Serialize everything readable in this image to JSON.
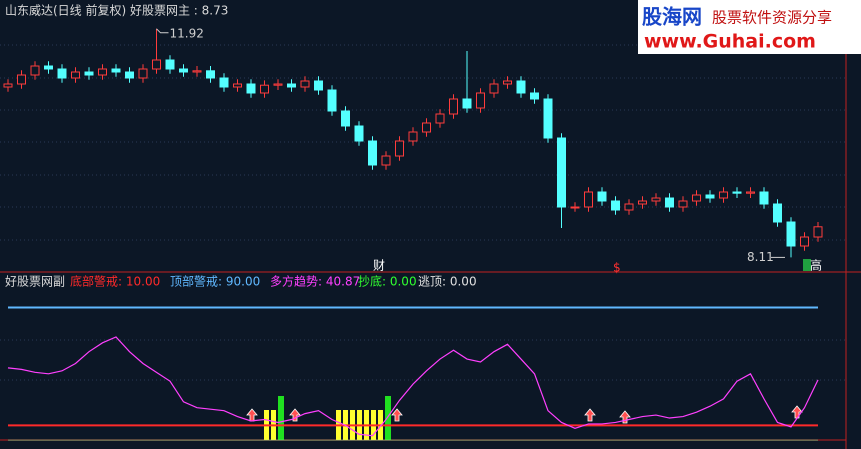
{
  "watermark": {
    "brand": "股海网",
    "slogan": "股票软件资源分享",
    "url": "www.Guhai.com"
  },
  "chart_data": [
    {
      "type": "candlestick",
      "title": "山东威达(日线 前复权) 好股票网主 : 8.73",
      "up_color": "#ff3c3c",
      "down_color": "#54ffff",
      "ylim": [
        7.9,
        12.4
      ],
      "annotations": [
        "财",
        "$",
        "高"
      ],
      "open": [
        10.95,
        11.0,
        11.15,
        11.3,
        11.25,
        11.1,
        11.2,
        11.15,
        11.25,
        11.2,
        11.1,
        11.25,
        11.4,
        11.25,
        11.2,
        11.22,
        11.1,
        10.95,
        11.0,
        10.85,
        10.98,
        11.0,
        10.95,
        11.05,
        10.9,
        10.55,
        10.3,
        10.05,
        9.65,
        9.8,
        10.05,
        10.2,
        10.35,
        10.5,
        10.75,
        10.6,
        10.85,
        11.0,
        11.05,
        10.85,
        10.75,
        10.1,
        8.95,
        8.95,
        9.2,
        9.05,
        8.9,
        9.0,
        9.05,
        9.1,
        8.95,
        9.05,
        9.15,
        9.1,
        9.2,
        9.18,
        9.2,
        9.0,
        8.7,
        8.3,
        8.45
      ],
      "high": [
        11.08,
        11.23,
        11.38,
        11.38,
        11.33,
        11.28,
        11.28,
        11.33,
        11.33,
        11.28,
        11.33,
        11.92,
        11.48,
        11.33,
        11.3,
        11.3,
        11.18,
        11.08,
        11.08,
        11.06,
        11.08,
        11.08,
        11.13,
        11.13,
        10.98,
        10.63,
        10.38,
        10.13,
        9.88,
        10.13,
        10.28,
        10.43,
        10.58,
        10.83,
        11.55,
        10.93,
        11.08,
        11.13,
        11.13,
        10.93,
        10.83,
        10.18,
        9.03,
        9.28,
        9.28,
        9.13,
        9.08,
        9.13,
        9.18,
        9.18,
        9.13,
        9.23,
        9.23,
        9.28,
        9.28,
        9.28,
        9.28,
        9.08,
        8.78,
        8.53,
        8.7
      ],
      "low": [
        10.87,
        10.92,
        11.07,
        11.17,
        11.02,
        11.02,
        11.07,
        11.07,
        11.12,
        11.02,
        11.02,
        11.17,
        11.17,
        11.12,
        11.12,
        11.02,
        10.87,
        10.87,
        10.77,
        10.77,
        10.9,
        10.87,
        10.87,
        10.82,
        10.47,
        10.22,
        9.97,
        9.57,
        9.57,
        9.72,
        9.97,
        10.12,
        10.27,
        10.42,
        10.52,
        10.52,
        10.77,
        10.92,
        10.77,
        10.67,
        10.02,
        8.6,
        8.87,
        8.87,
        8.97,
        8.82,
        8.82,
        8.92,
        8.97,
        8.87,
        8.87,
        8.97,
        9.02,
        9.02,
        9.1,
        9.1,
        8.92,
        8.62,
        8.11,
        8.22,
        8.37
      ],
      "close": [
        11.0,
        11.15,
        11.3,
        11.25,
        11.1,
        11.2,
        11.15,
        11.25,
        11.2,
        11.1,
        11.25,
        11.4,
        11.25,
        11.2,
        11.22,
        11.1,
        10.95,
        11.0,
        10.85,
        10.98,
        11.0,
        10.95,
        11.05,
        10.9,
        10.55,
        10.3,
        10.05,
        9.65,
        9.8,
        10.05,
        10.2,
        10.35,
        10.5,
        10.75,
        10.6,
        10.85,
        11.0,
        11.05,
        10.85,
        10.75,
        10.1,
        8.95,
        8.95,
        9.2,
        9.05,
        8.9,
        9.0,
        9.05,
        9.1,
        8.95,
        9.05,
        9.15,
        9.1,
        9.2,
        9.18,
        9.2,
        9.0,
        8.7,
        8.3,
        8.45,
        8.62
      ]
    },
    {
      "type": "line",
      "title": "好股票网副",
      "ylim": [
        -6,
        112
      ],
      "series": [
        {
          "label": "底部警戒: 10.00",
          "value": 10,
          "color": "#ff2a2a"
        },
        {
          "label": "顶部警戒: 90.00",
          "value": 90,
          "color": "#60b8ff"
        },
        {
          "label": "多方趋势: 40.87",
          "color": "#ff40ff",
          "values": [
            49,
            48,
            46,
            45,
            47,
            52,
            60,
            66,
            70,
            60,
            52,
            46,
            40,
            26,
            22,
            21,
            20,
            16,
            13,
            14,
            12,
            14,
            18,
            20,
            14,
            10,
            4,
            3,
            14,
            27,
            38,
            47,
            55,
            61,
            55,
            53,
            60,
            65,
            55,
            45,
            20,
            12,
            8,
            11,
            11,
            12,
            14,
            16,
            17,
            15,
            16,
            19,
            23,
            28,
            40,
            45,
            28,
            12,
            9,
            22,
            40.87
          ]
        },
        {
          "label": "抄底: 0.00",
          "value": 0,
          "color": "#30ff30"
        },
        {
          "label": "逃顶: 0.00",
          "value": 0,
          "color": "#e0e0e0"
        }
      ]
    }
  ]
}
